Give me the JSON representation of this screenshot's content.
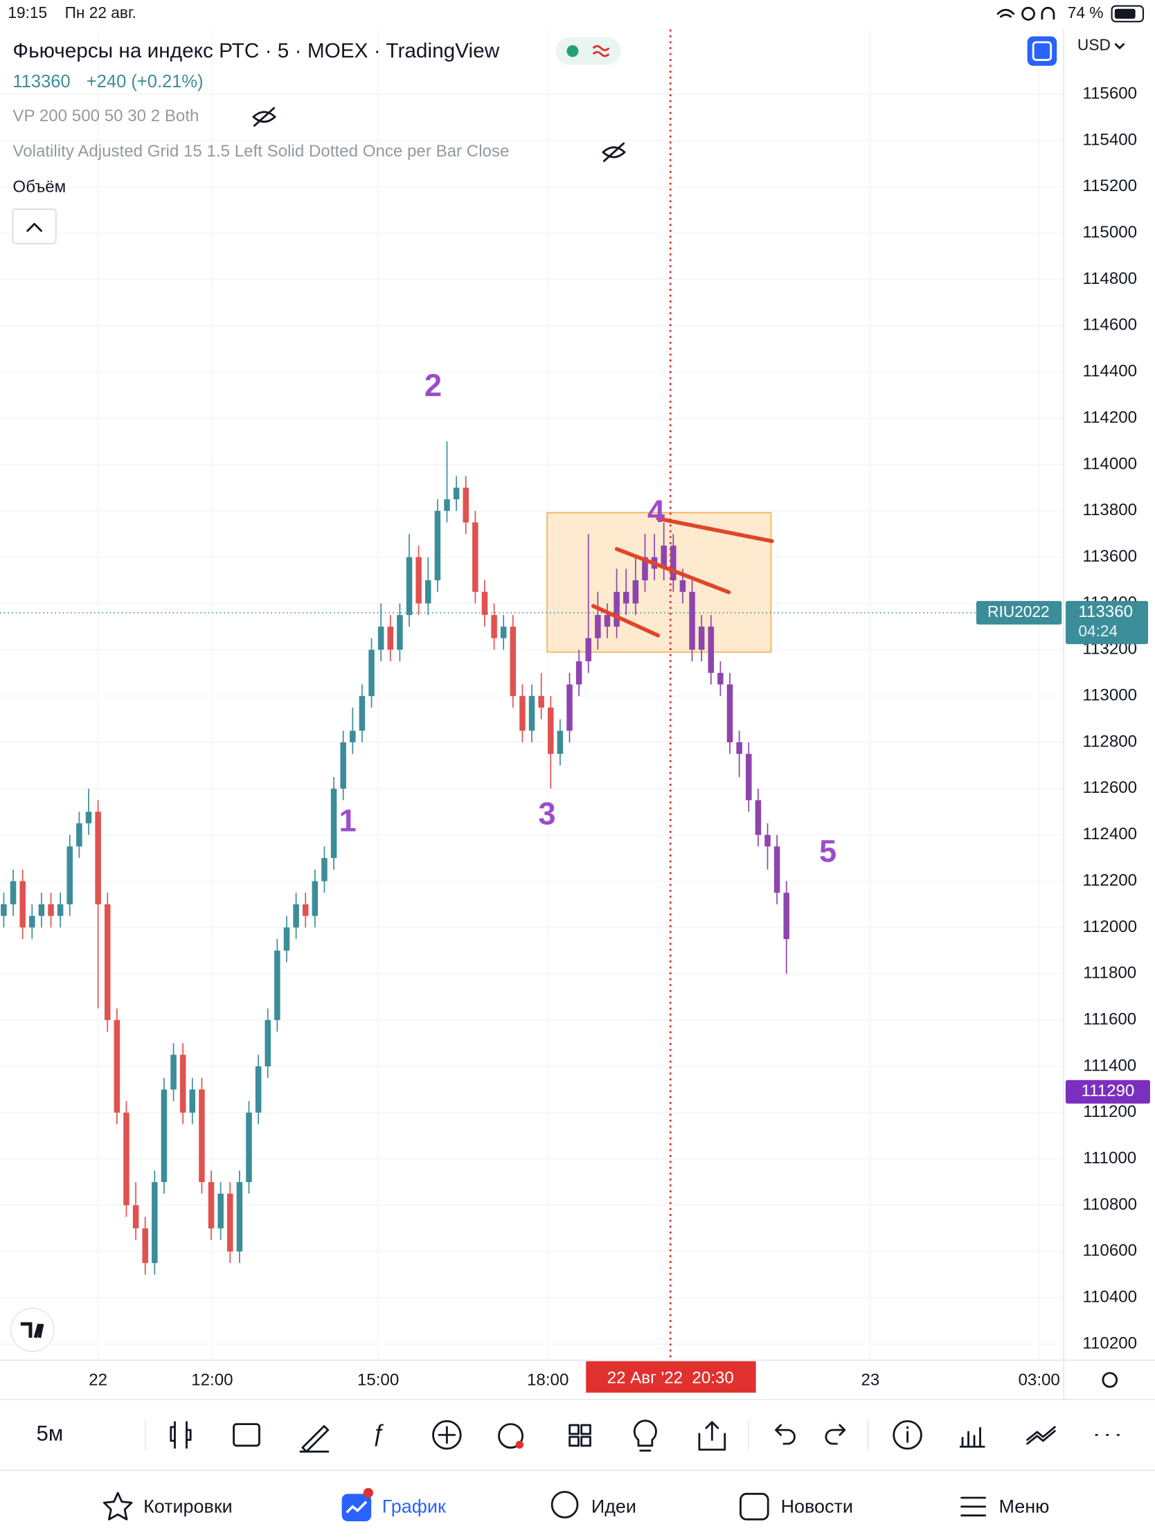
{
  "status_bar": {
    "time": "19:15",
    "date": "Пн 22 авг.",
    "battery": "74 %"
  },
  "header": {
    "title": "Фьючерсы на индекс РТС · 5 · MOEX · TradingView",
    "price": "113360",
    "change": "+240 (+0.21%)",
    "currency": "USD"
  },
  "indicators": [
    "VP 200 500 50 30 2 Both",
    "Volatility Adjusted Grid 15 1.5 Left Solid Dotted Once per Bar Close",
    "Объём"
  ],
  "chart_data": {
    "type": "candlestick",
    "ylim": [
      110130,
      115880
    ],
    "yticks": [
      110200,
      110400,
      110600,
      110800,
      111000,
      111200,
      111400,
      111600,
      111800,
      112000,
      112200,
      112400,
      112600,
      112800,
      113000,
      113200,
      113400,
      113600,
      113800,
      114000,
      114200,
      114400,
      114600,
      114800,
      115000,
      115200,
      115400,
      115600
    ],
    "xlim": [
      -0.4,
      112.4
    ],
    "xticks": [
      {
        "value": 10,
        "label": "22"
      },
      {
        "value": 22.1,
        "label": "12:00"
      },
      {
        "value": 39.7,
        "label": "15:00"
      },
      {
        "value": 57.7,
        "label": "18:00"
      },
      {
        "value": 91.9,
        "label": "23"
      },
      {
        "value": 109.8,
        "label": "03:00"
      }
    ],
    "grid": true,
    "series": [
      {
        "up_color": "#3b8d99",
        "down_color": "#e0524f",
        "x": [
          0,
          1,
          2,
          3,
          4,
          5,
          6,
          7,
          8,
          9,
          10,
          11,
          12,
          13,
          14,
          15,
          16,
          17,
          18,
          19,
          20,
          21,
          22,
          23,
          24,
          25,
          26,
          27,
          28,
          29,
          30,
          31,
          32,
          33,
          34,
          35,
          36,
          37,
          38,
          39,
          40,
          41,
          42,
          43,
          44,
          45,
          46,
          47,
          48,
          49,
          50,
          51,
          52,
          53,
          54,
          55,
          56,
          57,
          58,
          59
        ],
        "open": [
          112050,
          112100,
          112200,
          112000,
          112050,
          112100,
          112050,
          112100,
          112350,
          112450,
          112500,
          112100,
          111600,
          111200,
          110800,
          110700,
          110550,
          110900,
          111300,
          111450,
          111200,
          111300,
          110900,
          110700,
          110850,
          110600,
          110900,
          111200,
          111400,
          111600,
          111900,
          112000,
          112100,
          112050,
          112200,
          112300,
          112600,
          112800,
          112850,
          113000,
          113200,
          113300,
          113200,
          113350,
          113600,
          113400,
          113500,
          113800,
          113850,
          113900,
          113750,
          113450,
          113350,
          113250,
          113300,
          113000,
          112850,
          113000,
          112950,
          112750
        ],
        "high": [
          112150,
          112250,
          112250,
          112100,
          112150,
          112150,
          112150,
          112400,
          112500,
          112600,
          112550,
          112150,
          111650,
          111250,
          110900,
          110750,
          110950,
          111350,
          111500,
          111500,
          111350,
          111350,
          110950,
          110900,
          110900,
          110950,
          111250,
          111450,
          111650,
          111950,
          112050,
          112150,
          112150,
          112250,
          112350,
          112650,
          112850,
          112950,
          113050,
          113250,
          113400,
          113350,
          113400,
          113700,
          113650,
          113600,
          113850,
          114100,
          113950,
          113950,
          113800,
          113500,
          113400,
          113350,
          113350,
          113050,
          113050,
          113100,
          113000,
          112900
        ],
        "low": [
          112000,
          112050,
          111950,
          111950,
          112000,
          112000,
          112000,
          112050,
          112300,
          112400,
          111650,
          111550,
          111150,
          110750,
          110650,
          110500,
          110500,
          110850,
          111250,
          111150,
          111150,
          110850,
          110650,
          110650,
          110550,
          110550,
          110850,
          111150,
          111350,
          111550,
          111850,
          111950,
          112000,
          112000,
          112150,
          112250,
          112550,
          112750,
          112800,
          112950,
          113150,
          113150,
          113150,
          113300,
          113350,
          113350,
          113450,
          113750,
          113800,
          113700,
          113400,
          113300,
          113200,
          113200,
          112950,
          112800,
          112800,
          112900,
          112600,
          112700
        ],
        "close": [
          112100,
          112200,
          112000,
          112050,
          112100,
          112050,
          112100,
          112350,
          112450,
          112500,
          112100,
          111600,
          111200,
          110800,
          110700,
          110550,
          110900,
          111300,
          111450,
          111200,
          111300,
          110900,
          110700,
          110850,
          110600,
          110900,
          111200,
          111400,
          111600,
          111900,
          112000,
          112100,
          112050,
          112200,
          112300,
          112600,
          112800,
          112850,
          113000,
          113200,
          113300,
          113200,
          113350,
          113600,
          113400,
          113500,
          113800,
          113850,
          113900,
          113750,
          113450,
          113350,
          113250,
          113300,
          113000,
          112850,
          113000,
          112950,
          112750,
          112850
        ]
      },
      {
        "up_color": "#8e44ad",
        "down_color": "#8e44ad",
        "x": [
          60,
          61,
          62,
          63,
          64,
          65,
          66,
          67,
          68,
          69,
          70,
          71,
          72,
          73,
          74,
          75,
          76,
          77,
          78,
          79,
          80,
          81,
          82,
          83
        ],
        "open": [
          112850,
          113050,
          113150,
          113250,
          113350,
          113300,
          113450,
          113400,
          113500,
          113600,
          113550,
          113650,
          113500,
          113450,
          113200,
          113300,
          113100,
          113050,
          112800,
          112750,
          112550,
          112400,
          112350,
          112150
        ],
        "high": [
          113100,
          113200,
          113700,
          113450,
          113400,
          113550,
          113550,
          113600,
          113700,
          113700,
          113750,
          113700,
          113550,
          113500,
          113350,
          113350,
          113150,
          113100,
          112850,
          112800,
          112600,
          112450,
          112400,
          112200
        ],
        "low": [
          112800,
          113000,
          113100,
          113200,
          113250,
          113250,
          113350,
          113350,
          113450,
          113500,
          113500,
          113450,
          113400,
          113150,
          113150,
          113050,
          113000,
          112750,
          112650,
          112500,
          112350,
          112250,
          112100,
          111800
        ],
        "close": [
          113050,
          113150,
          113250,
          113350,
          113300,
          113450,
          113400,
          113500,
          113600,
          113550,
          113650,
          113500,
          113450,
          113200,
          113300,
          113100,
          113050,
          112800,
          112750,
          112550,
          112400,
          112350,
          112150,
          111950
        ]
      }
    ],
    "annotations": [
      "1",
      "2",
      "3",
      "4",
      "5"
    ],
    "annotation_color": "#9b4dca",
    "last_price": {
      "label": "RIU2022",
      "value": 113360,
      "countdown": "04:24",
      "color": "#3b8d99"
    },
    "indicator_price": {
      "value": 111290,
      "color": "#7b2fbf"
    },
    "crosshair": {
      "value": 70.7,
      "label": "22 Авг '22  20:30",
      "color": "#e0312f"
    }
  },
  "toolbar": {
    "interval": "5м"
  },
  "nav": [
    "Котировки",
    "График",
    "Идеи",
    "Новости",
    "Меню"
  ]
}
